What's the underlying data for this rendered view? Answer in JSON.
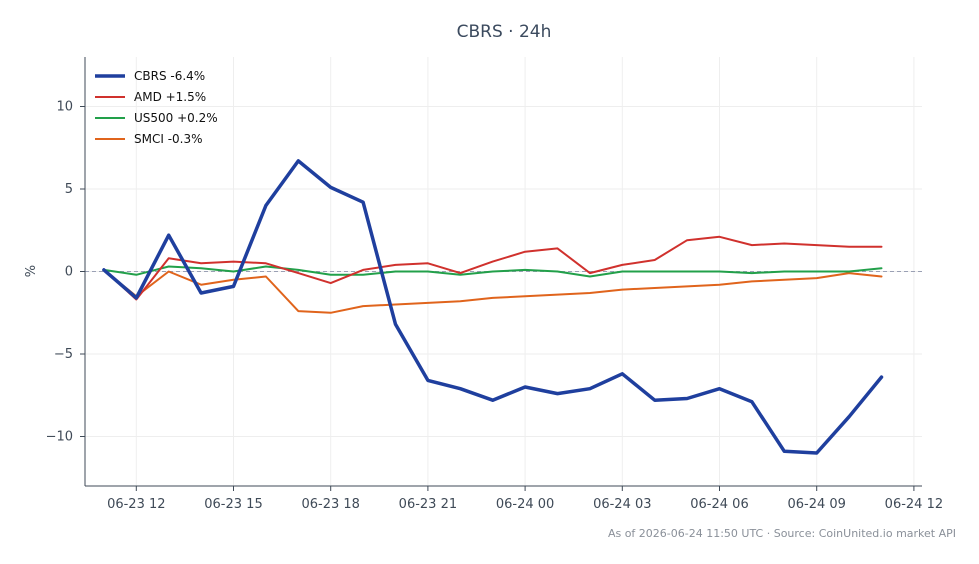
{
  "chart_data": {
    "type": "line",
    "title": "CBRS · 24h",
    "xlabel": "",
    "ylabel": "%",
    "ylim": [
      -13,
      13
    ],
    "yticks": [
      10,
      5,
      0,
      -5,
      -10
    ],
    "ytick_labels": [
      "10",
      "5",
      "0",
      "−5",
      "−10"
    ],
    "xlim": [
      "2026-06-23 10:25",
      "2026-06-24 12:15"
    ],
    "xticks": [
      "2026-06-23 12:00",
      "2026-06-23 15:00",
      "2026-06-23 18:00",
      "2026-06-23 21:00",
      "2026-06-24 00:00",
      "2026-06-24 03:00",
      "2026-06-24 06:00",
      "2026-06-24 09:00",
      "2026-06-24 12:00"
    ],
    "xtick_labels": [
      "06-23 12",
      "06-23 15",
      "06-23 18",
      "06-23 21",
      "06-24 00",
      "06-24 03",
      "06-24 06",
      "06-24 09",
      "06-24 12"
    ],
    "grid": true,
    "legend_position": "top-left",
    "zero_line": true,
    "x": [
      "2026-06-23 11:00",
      "2026-06-23 12:00",
      "2026-06-23 13:00",
      "2026-06-23 14:00",
      "2026-06-23 15:00",
      "2026-06-23 16:00",
      "2026-06-23 17:00",
      "2026-06-23 18:00",
      "2026-06-23 19:00",
      "2026-06-23 20:00",
      "2026-06-23 21:00",
      "2026-06-23 22:00",
      "2026-06-23 23:00",
      "2026-06-24 00:00",
      "2026-06-24 01:00",
      "2026-06-24 02:00",
      "2026-06-24 03:00",
      "2026-06-24 04:00",
      "2026-06-24 05:00",
      "2026-06-24 06:00",
      "2026-06-24 07:00",
      "2026-06-24 08:00",
      "2026-06-24 09:00",
      "2026-06-24 10:00",
      "2026-06-24 11:00"
    ],
    "series": [
      {
        "name": "CBRS -6.4%",
        "color": "#1f3f9e",
        "values": [
          0.1,
          -1.6,
          2.2,
          -1.3,
          -0.9,
          4.0,
          6.7,
          5.1,
          4.2,
          -3.2,
          -6.6,
          -7.1,
          -7.8,
          -7.0,
          -7.4,
          -7.1,
          -6.2,
          -7.8,
          -7.7,
          -7.1,
          -7.9,
          -10.9,
          -11.0,
          -8.8,
          -6.4
        ]
      },
      {
        "name": "AMD +1.5%",
        "color": "#d0312d",
        "values": [
          0.1,
          -1.7,
          0.8,
          0.5,
          0.6,
          0.5,
          -0.1,
          -0.7,
          0.1,
          0.4,
          0.5,
          -0.1,
          0.6,
          1.2,
          1.4,
          -0.1,
          0.4,
          0.7,
          1.9,
          2.1,
          1.6,
          1.7,
          1.6,
          1.5,
          1.5
        ]
      },
      {
        "name": "US500 +0.2%",
        "color": "#22a04a",
        "values": [
          0.1,
          -0.2,
          0.3,
          0.2,
          0.0,
          0.3,
          0.1,
          -0.2,
          -0.2,
          0.0,
          0.0,
          -0.2,
          0.0,
          0.1,
          0.0,
          -0.3,
          0.0,
          0.0,
          0.0,
          0.0,
          -0.1,
          0.0,
          0.0,
          0.0,
          0.2
        ]
      },
      {
        "name": "SMCI -0.3%",
        "color": "#e0641c",
        "values": [
          0.1,
          -1.5,
          0.0,
          -0.8,
          -0.5,
          -0.3,
          -2.4,
          -2.5,
          -2.1,
          -2.0,
          -1.9,
          -1.8,
          -1.6,
          -1.5,
          -1.4,
          -1.3,
          -1.1,
          -1.0,
          -0.9,
          -0.8,
          -0.6,
          -0.5,
          -0.4,
          -0.1,
          -0.3
        ]
      }
    ]
  },
  "footer": "As of 2026-06-24 11:50 UTC · Source: CoinUnited.io market API"
}
